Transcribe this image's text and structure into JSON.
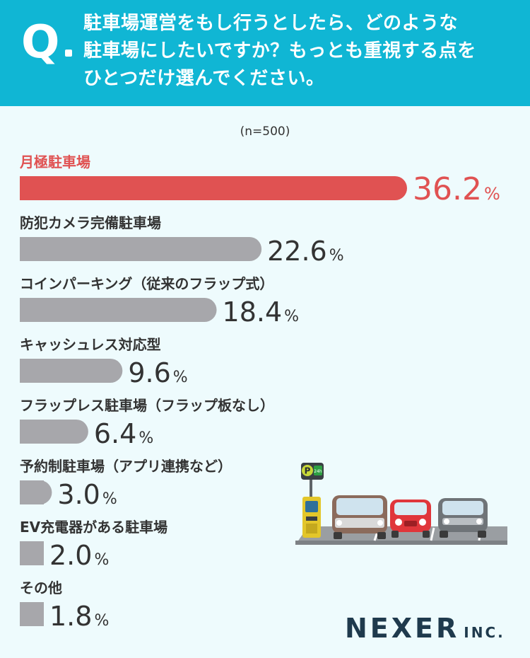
{
  "header": {
    "q_mark": "Q",
    "question_lines": [
      "駐車場運営をもし行うとしたら、どのような",
      "駐車場にしたいですか？もっとも重視する点を",
      "ひとつだけ選んでください。"
    ]
  },
  "sample_note": "(n=500)",
  "brand": {
    "name": "NEXER",
    "suffix": "INC."
  },
  "illustration": {
    "sign_letter": "P",
    "sign_hours": "24h"
  },
  "colors": {
    "header": "#10b6d4",
    "highlight": "#e05252",
    "bar": "#a7a7ab",
    "background": "#eefbfd"
  },
  "chart_data": {
    "type": "bar",
    "orientation": "horizontal",
    "unit": "%",
    "categories": [
      "月極駐車場",
      "防犯カメラ完備駐車場",
      "コインパーキング（従来のフラップ式）",
      "キャッシュレス対応型",
      "フラップレス駐車場（フラップ板なし）",
      "予約制駐車場（アプリ連携など）",
      "EV充電器がある駐車場",
      "その他"
    ],
    "values": [
      36.2,
      22.6,
      18.4,
      9.6,
      6.4,
      3.0,
      2.0,
      1.8
    ],
    "value_labels": [
      "36.2",
      "22.6",
      "18.4",
      "9.6",
      "6.4",
      "3.0",
      "2.0",
      "1.8"
    ],
    "highlight_index": 0
  }
}
